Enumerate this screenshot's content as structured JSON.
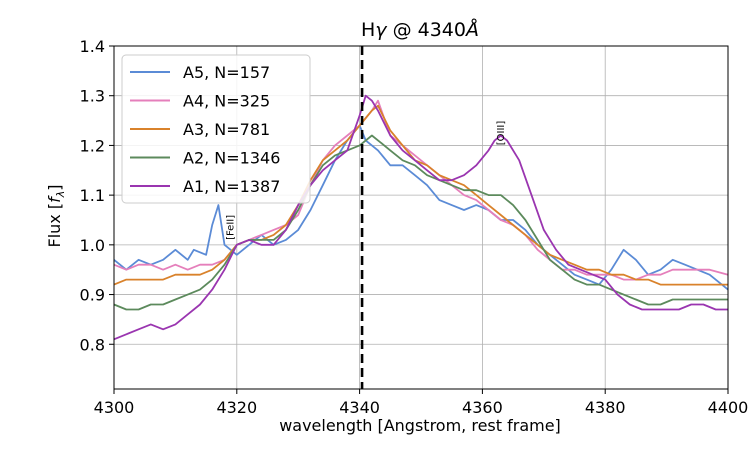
{
  "chart_data": {
    "type": "line",
    "title_prefix": "H",
    "title_greek": "γ",
    "title_suffix": " @ 4340",
    "title_unit": "Å",
    "xlabel": "wavelength [Angstrom, rest frame]",
    "ylabel_prefix": "Flux [",
    "ylabel_var": "f",
    "ylabel_sub": "λ",
    "ylabel_suffix": "]",
    "xlim": [
      4300,
      4400
    ],
    "ylim": [
      0.71,
      1.4
    ],
    "xticks": [
      4300,
      4320,
      4340,
      4360,
      4380,
      4400
    ],
    "yticks": [
      0.8,
      0.9,
      1.0,
      1.1,
      1.2,
      1.3,
      1.4
    ],
    "grid": true,
    "legend_position": "top-left",
    "vline": {
      "x": 4340.4,
      "color": "#000000",
      "style": "dashed"
    },
    "annotations": [
      {
        "text": "[FeII]",
        "x": 4319.5,
        "y": 1.035
      },
      {
        "text": "[OIII]",
        "x": 4363.5,
        "y": 1.225
      }
    ],
    "series": [
      {
        "name": "A5, N=157",
        "color": "#5b8bd6",
        "x": [
          4300,
          4302,
          4304,
          4306,
          4308,
          4310,
          4312,
          4313,
          4315,
          4316,
          4317,
          4318,
          4320,
          4322,
          4324,
          4326,
          4328,
          4330,
          4332,
          4334,
          4336,
          4338,
          4340,
          4341,
          4343,
          4345,
          4347,
          4349,
          4351,
          4353,
          4355,
          4357,
          4359,
          4361,
          4363,
          4365,
          4367,
          4369,
          4371,
          4373,
          4375,
          4377,
          4379,
          4381,
          4383,
          4385,
          4387,
          4389,
          4391,
          4393,
          4395,
          4397,
          4400
        ],
        "values": [
          0.97,
          0.95,
          0.97,
          0.96,
          0.97,
          0.99,
          0.97,
          0.99,
          0.98,
          1.04,
          1.08,
          1.0,
          0.98,
          1.0,
          1.02,
          1.0,
          1.01,
          1.03,
          1.07,
          1.12,
          1.17,
          1.21,
          1.24,
          1.21,
          1.19,
          1.16,
          1.16,
          1.14,
          1.12,
          1.09,
          1.08,
          1.07,
          1.08,
          1.07,
          1.05,
          1.05,
          1.03,
          1.0,
          0.98,
          0.96,
          0.94,
          0.93,
          0.92,
          0.95,
          0.99,
          0.97,
          0.94,
          0.95,
          0.97,
          0.96,
          0.95,
          0.94,
          0.91
        ]
      },
      {
        "name": "A4, N=325",
        "color": "#e57fbb",
        "x": [
          4300,
          4302,
          4304,
          4306,
          4308,
          4310,
          4312,
          4314,
          4316,
          4318,
          4320,
          4322,
          4324,
          4326,
          4328,
          4330,
          4332,
          4334,
          4336,
          4338,
          4340,
          4342,
          4343,
          4345,
          4347,
          4349,
          4351,
          4353,
          4355,
          4357,
          4359,
          4361,
          4363,
          4365,
          4367,
          4369,
          4371,
          4373,
          4375,
          4377,
          4379,
          4381,
          4383,
          4385,
          4387,
          4389,
          4391,
          4393,
          4395,
          4397,
          4400
        ],
        "values": [
          0.96,
          0.95,
          0.96,
          0.96,
          0.95,
          0.96,
          0.95,
          0.96,
          0.96,
          0.97,
          1.0,
          1.01,
          1.02,
          1.03,
          1.04,
          1.06,
          1.12,
          1.17,
          1.2,
          1.22,
          1.24,
          1.27,
          1.29,
          1.22,
          1.2,
          1.18,
          1.16,
          1.14,
          1.12,
          1.1,
          1.09,
          1.07,
          1.05,
          1.04,
          1.02,
          0.99,
          0.97,
          0.95,
          0.95,
          0.94,
          0.94,
          0.94,
          0.93,
          0.93,
          0.94,
          0.94,
          0.95,
          0.95,
          0.95,
          0.95,
          0.94
        ]
      },
      {
        "name": "A3, N=781",
        "color": "#d9822b",
        "x": [
          4300,
          4302,
          4304,
          4306,
          4308,
          4310,
          4312,
          4314,
          4316,
          4318,
          4320,
          4322,
          4324,
          4326,
          4328,
          4330,
          4332,
          4334,
          4336,
          4338,
          4340,
          4342,
          4343,
          4345,
          4347,
          4349,
          4351,
          4353,
          4355,
          4357,
          4359,
          4361,
          4363,
          4365,
          4367,
          4369,
          4371,
          4373,
          4375,
          4377,
          4379,
          4381,
          4383,
          4385,
          4387,
          4389,
          4391,
          4393,
          4395,
          4397,
          4400
        ],
        "values": [
          0.92,
          0.93,
          0.93,
          0.93,
          0.93,
          0.94,
          0.94,
          0.94,
          0.95,
          0.97,
          1.0,
          1.01,
          1.01,
          1.02,
          1.04,
          1.08,
          1.13,
          1.17,
          1.19,
          1.21,
          1.24,
          1.27,
          1.28,
          1.23,
          1.2,
          1.17,
          1.16,
          1.14,
          1.13,
          1.12,
          1.1,
          1.08,
          1.06,
          1.04,
          1.02,
          1.0,
          0.98,
          0.97,
          0.96,
          0.95,
          0.95,
          0.94,
          0.94,
          0.93,
          0.93,
          0.92,
          0.92,
          0.92,
          0.92,
          0.92,
          0.92
        ]
      },
      {
        "name": "A2, N=1346",
        "color": "#5c8a5c",
        "x": [
          4300,
          4302,
          4304,
          4306,
          4308,
          4310,
          4312,
          4314,
          4316,
          4318,
          4320,
          4322,
          4324,
          4326,
          4328,
          4330,
          4332,
          4334,
          4336,
          4338,
          4340,
          4342,
          4343,
          4345,
          4347,
          4349,
          4351,
          4353,
          4355,
          4357,
          4359,
          4361,
          4363,
          4365,
          4367,
          4369,
          4371,
          4373,
          4375,
          4377,
          4379,
          4381,
          4383,
          4385,
          4387,
          4389,
          4391,
          4393,
          4395,
          4397,
          4400
        ],
        "values": [
          0.88,
          0.87,
          0.87,
          0.88,
          0.88,
          0.89,
          0.9,
          0.91,
          0.93,
          0.96,
          1.0,
          1.01,
          1.01,
          1.01,
          1.03,
          1.07,
          1.12,
          1.16,
          1.18,
          1.19,
          1.2,
          1.22,
          1.21,
          1.19,
          1.17,
          1.16,
          1.14,
          1.13,
          1.12,
          1.11,
          1.11,
          1.1,
          1.1,
          1.08,
          1.05,
          1.01,
          0.97,
          0.95,
          0.93,
          0.92,
          0.92,
          0.91,
          0.9,
          0.89,
          0.88,
          0.88,
          0.89,
          0.89,
          0.89,
          0.89,
          0.89
        ]
      },
      {
        "name": "A1, N=1387",
        "color": "#9a35b0",
        "x": [
          4300,
          4302,
          4304,
          4306,
          4308,
          4310,
          4312,
          4314,
          4316,
          4318,
          4320,
          4322,
          4324,
          4326,
          4328,
          4330,
          4332,
          4334,
          4336,
          4338,
          4340,
          4341,
          4342,
          4343,
          4345,
          4347,
          4349,
          4351,
          4353,
          4355,
          4357,
          4359,
          4361,
          4362,
          4363,
          4364,
          4366,
          4368,
          4370,
          4372,
          4374,
          4376,
          4378,
          4380,
          4382,
          4384,
          4386,
          4388,
          4390,
          4392,
          4394,
          4396,
          4398,
          4400
        ],
        "values": [
          0.81,
          0.82,
          0.83,
          0.84,
          0.83,
          0.84,
          0.86,
          0.88,
          0.91,
          0.95,
          1.0,
          1.01,
          1.0,
          1.0,
          1.03,
          1.08,
          1.12,
          1.15,
          1.17,
          1.19,
          1.26,
          1.3,
          1.29,
          1.27,
          1.22,
          1.19,
          1.17,
          1.15,
          1.13,
          1.13,
          1.14,
          1.16,
          1.19,
          1.21,
          1.22,
          1.21,
          1.17,
          1.1,
          1.03,
          0.99,
          0.96,
          0.95,
          0.94,
          0.93,
          0.9,
          0.88,
          0.87,
          0.87,
          0.87,
          0.87,
          0.88,
          0.88,
          0.87,
          0.87
        ]
      }
    ]
  }
}
